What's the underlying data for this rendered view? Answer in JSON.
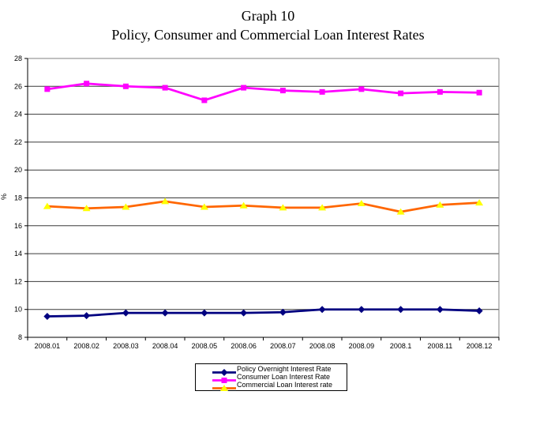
{
  "chart_data": {
    "type": "line",
    "title": "Graph 10",
    "subtitle": "Policy, Consumer and Commercial Loan Interest Rates",
    "ylabel": "%",
    "ylim": [
      8,
      28
    ],
    "ytick_step": 2,
    "grid": true,
    "legend_position": "bottom-center",
    "colors": {
      "gridline": "#3a3a3a",
      "axis": "#000000",
      "plot_border": "#808080",
      "text": "#000000"
    },
    "categories": [
      "2008.01",
      "2008.02",
      "2008.03",
      "2008.04",
      "2008.05",
      "2008.06",
      "2008.07",
      "2008.08",
      "2008.09",
      "2008.1",
      "2008.11",
      "2008.12"
    ],
    "series": [
      {
        "name": "Policy Overnight Interest Rate",
        "color": "#000080",
        "marker": "diamond",
        "marker_color": "#000080",
        "values": [
          9.5,
          9.55,
          9.75,
          9.75,
          9.75,
          9.75,
          9.8,
          10.0,
          10.0,
          10.0,
          10.0,
          9.9
        ]
      },
      {
        "name": "Consumer Loan Interest Rate",
        "color": "#FF00FF",
        "marker": "square",
        "marker_color": "#FF00FF",
        "values": [
          25.8,
          26.2,
          26.0,
          25.9,
          25.0,
          25.9,
          25.7,
          25.6,
          25.8,
          25.5,
          25.6,
          25.55
        ]
      },
      {
        "name": "Commercial Loan Interest rate",
        "color": "#FF6600",
        "marker": "triangle",
        "marker_color": "#FFFF00",
        "values": [
          17.4,
          17.25,
          17.35,
          17.75,
          17.35,
          17.45,
          17.3,
          17.3,
          17.6,
          17.0,
          17.5,
          17.65
        ]
      }
    ]
  }
}
